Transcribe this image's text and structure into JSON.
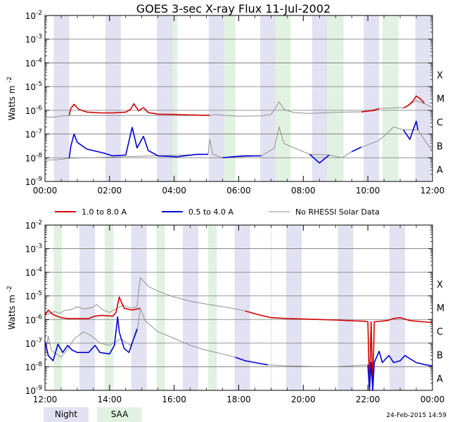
{
  "chart_data": {
    "type": "line",
    "title": "GOES 3-sec X-ray Flux   11-Jul-2002",
    "ylabel": "Watts m",
    "ylabel_exponent": "-2",
    "yscale": "log",
    "y_tick_exponents": [
      "-2",
      "-3",
      "-4",
      "-5",
      "-6",
      "-7",
      "-8",
      "-9"
    ],
    "y_tick_base": "10",
    "flare_classes": [
      "X",
      "M",
      "C",
      "B",
      "A"
    ],
    "legend": {
      "series": [
        {
          "name": "1.0 to 8.0 A",
          "color": "#d40000"
        },
        {
          "name": "0.5 to 4.0 A",
          "color": "#0000d4"
        },
        {
          "name": "No RHESSI Solar Data",
          "color": "#909090"
        }
      ],
      "bands": [
        {
          "name": "Night",
          "color": "#e2e2f2"
        },
        {
          "name": "SAA",
          "color": "#e2f2e2"
        }
      ]
    },
    "footer": "24-Feb-2015 14:59",
    "panels": [
      {
        "x_ticks": [
          "00:00",
          "02:00",
          "04:00",
          "06:00",
          "08:00",
          "10:00",
          "12:00"
        ],
        "xlim_hours": [
          0,
          12
        ],
        "ylim_log": [
          -9,
          -2
        ],
        "night": [
          [
            0.27,
            0.75
          ],
          [
            1.87,
            2.35
          ],
          [
            3.47,
            3.95
          ],
          [
            5.07,
            5.55
          ],
          [
            6.67,
            7.15
          ],
          [
            8.27,
            8.75
          ],
          [
            9.87,
            10.35
          ],
          [
            11.47,
            11.95
          ]
        ],
        "saa": [
          [
            3.95,
            4.1
          ],
          [
            5.55,
            5.9
          ],
          [
            7.15,
            7.6
          ],
          [
            8.75,
            9.25
          ],
          [
            10.45,
            10.95
          ]
        ],
        "long_gray": [
          [
            0,
            5.2e-07
          ],
          [
            0.3,
            5.2e-07
          ],
          [
            0.42,
            5.5e-07
          ],
          [
            0.55,
            5.9e-07
          ],
          [
            0.75,
            6e-07
          ],
          [
            5.1,
            6.1e-07
          ],
          [
            5.3,
            6.6e-07
          ],
          [
            5.5,
            6.2e-07
          ],
          [
            6.0,
            5.6e-07
          ],
          [
            6.7,
            5.8e-07
          ],
          [
            7.0,
            6.6e-07
          ],
          [
            7.15,
            1.3e-06
          ],
          [
            7.25,
            2.3e-06
          ],
          [
            7.4,
            1.1e-06
          ],
          [
            7.7,
            8e-07
          ],
          [
            8.2,
            7.4e-07
          ],
          [
            8.75,
            8e-07
          ],
          [
            9.3,
            8.4e-07
          ],
          [
            9.8,
            8.6e-07
          ],
          [
            10.35,
            1.2e-06
          ],
          [
            10.7,
            1.25e-06
          ],
          [
            11.0,
            1.3e-06
          ],
          [
            11.1,
            1.25e-06
          ],
          [
            11.5,
            2.6e-06
          ],
          [
            11.8,
            1.8e-06
          ],
          [
            12,
            1.3e-06
          ]
        ],
        "long_red": [
          [
            0.75,
            6e-07
          ],
          [
            0.8,
            1.2e-06
          ],
          [
            0.9,
            1.8e-06
          ],
          [
            1.05,
            1.1e-06
          ],
          [
            1.3,
            8.4e-07
          ],
          [
            1.7,
            7.8e-07
          ],
          [
            2.1,
            7.8e-07
          ],
          [
            2.5,
            8.4e-07
          ],
          [
            2.65,
            1.1e-06
          ],
          [
            2.75,
            1.9e-06
          ],
          [
            2.9,
            9.5e-07
          ],
          [
            3.05,
            1.3e-06
          ],
          [
            3.2,
            8e-07
          ],
          [
            3.5,
            6.9e-07
          ],
          [
            4.0,
            6.7e-07
          ],
          [
            4.5,
            6.4e-07
          ],
          [
            5.1,
            6.1e-07
          ]
        ],
        "long_red_2": [
          [
            9.8,
            8.6e-07
          ],
          [
            10.2,
            1e-06
          ],
          [
            10.35,
            1.2e-06
          ]
        ],
        "long_red_3": [
          [
            11.1,
            1.25e-06
          ],
          [
            11.25,
            1.6e-06
          ],
          [
            11.4,
            2.5e-06
          ],
          [
            11.5,
            4e-06
          ],
          [
            11.62,
            3.1e-06
          ],
          [
            11.75,
            2e-06
          ]
        ],
        "short_gray": [
          [
            0,
            8e-09
          ],
          [
            0.4,
            8.3e-09
          ],
          [
            0.6,
            9e-09
          ],
          [
            0.75,
            9.5e-09
          ],
          [
            5.05,
            1.4e-08
          ],
          [
            5.1,
            6e-08
          ],
          [
            5.2,
            1.4e-08
          ],
          [
            5.5,
            1e-08
          ],
          [
            6.7,
            1.2e-08
          ],
          [
            7.1,
            2.5e-08
          ],
          [
            7.25,
            2e-07
          ],
          [
            7.4,
            4e-08
          ],
          [
            7.6,
            3e-08
          ],
          [
            8.2,
            1.4e-08
          ],
          [
            8.8,
            1.3e-08
          ],
          [
            9.2,
            1e-08
          ],
          [
            9.5,
            1.8e-08
          ],
          [
            9.8,
            2.8e-08
          ],
          [
            10.3,
            5e-08
          ],
          [
            10.5,
            8e-08
          ],
          [
            10.8,
            2e-07
          ],
          [
            11.1,
            1.5e-07
          ],
          [
            11.55,
            1.5e-07
          ],
          [
            11.8,
            4.5e-08
          ],
          [
            12,
            2e-08
          ]
        ],
        "short_blue": [
          [
            0.75,
            9.5e-09
          ],
          [
            0.8,
            3e-08
          ],
          [
            0.9,
            1e-07
          ],
          [
            1.0,
            4.5e-08
          ],
          [
            1.3,
            2.3e-08
          ],
          [
            1.8,
            1.6e-08
          ],
          [
            2.1,
            1.2e-08
          ],
          [
            2.5,
            1.3e-08
          ],
          [
            2.7,
            1.9e-07
          ],
          [
            2.85,
            2.6e-08
          ],
          [
            3.05,
            8e-08
          ],
          [
            3.2,
            2e-08
          ],
          [
            3.5,
            1.2e-08
          ],
          [
            4.1,
            1.1e-08
          ],
          [
            4.7,
            1.4e-08
          ],
          [
            5.05,
            1.4e-08
          ]
        ],
        "short_blue_2": [
          [
            5.5,
            1e-08
          ],
          [
            5.8,
            1.1e-08
          ],
          [
            6.2,
            1.2e-08
          ],
          [
            6.7,
            1.2e-08
          ]
        ],
        "short_blue_3": [
          [
            8.2,
            1.4e-08
          ],
          [
            8.5,
            6e-09
          ],
          [
            8.8,
            1.3e-08
          ]
        ],
        "short_blue_4": [
          [
            9.5,
            1.8e-08
          ],
          [
            9.8,
            2.8e-08
          ]
        ],
        "short_blue_5": [
          [
            11.1,
            1.5e-07
          ],
          [
            11.3,
            6e-08
          ],
          [
            11.5,
            3.5e-07
          ],
          [
            11.55,
            1.5e-07
          ]
        ]
      },
      {
        "x_ticks": [
          "12:00",
          "14:00",
          "16:00",
          "18:00",
          "20:00",
          "22:00",
          "00:00"
        ],
        "xlim_hours": [
          12,
          24
        ],
        "ylim_log": [
          -9,
          -2
        ],
        "night": [
          [
            13.07,
            13.55
          ],
          [
            14.67,
            15.15
          ],
          [
            16.27,
            16.75
          ],
          [
            17.87,
            18.35
          ],
          [
            19.47,
            19.95
          ],
          [
            21.07,
            21.55
          ],
          [
            22.67,
            23.15
          ]
        ],
        "saa": [
          [
            12.27,
            12.52
          ],
          [
            13.85,
            14.12
          ],
          [
            15.45,
            15.72
          ],
          [
            17.05,
            17.32
          ],
          [
            19.0,
            19.02
          ]
        ],
        "long_gray": [
          [
            12.0,
            1.5e-06
          ],
          [
            12.3,
            2.2e-06
          ],
          [
            12.45,
            1.8e-06
          ],
          [
            12.6,
            2.4e-06
          ],
          [
            12.8,
            2.6e-06
          ],
          [
            13.0,
            3.5e-06
          ],
          [
            13.2,
            2.8e-06
          ],
          [
            13.45,
            3.2e-06
          ],
          [
            13.6,
            4.3e-06
          ],
          [
            13.8,
            2.5e-06
          ],
          [
            14.0,
            2e-06
          ],
          [
            14.4,
            4e-06
          ],
          [
            14.7,
            3e-06
          ],
          [
            14.85,
            3.5e-06
          ],
          [
            14.95,
            6e-05
          ],
          [
            15.2,
            2.5e-05
          ],
          [
            15.6,
            1.4e-05
          ],
          [
            16.0,
            9e-06
          ],
          [
            16.5,
            6e-06
          ],
          [
            17.0,
            4.5e-06
          ],
          [
            17.5,
            3.5e-06
          ],
          [
            17.9,
            2.8e-06
          ],
          [
            18.2,
            2.3e-06
          ]
        ],
        "long_red": [
          [
            12.0,
            1.5e-06
          ],
          [
            12.1,
            2.5e-06
          ],
          [
            12.25,
            1.6e-06
          ],
          [
            12.5,
            1.2e-06
          ],
          [
            12.7,
            1.1e-06
          ],
          [
            13.0,
            1.1e-06
          ],
          [
            13.35,
            1.1e-06
          ],
          [
            13.55,
            1.4e-06
          ],
          [
            13.75,
            1.5e-06
          ],
          [
            14.1,
            1.4e-06
          ],
          [
            14.2,
            2e-06
          ],
          [
            14.3,
            9e-06
          ],
          [
            14.45,
            3e-06
          ],
          [
            14.7,
            2.5e-06
          ],
          [
            14.95,
            3e-06
          ]
        ],
        "long_red_2": [
          [
            18.2,
            2.3e-06
          ],
          [
            18.6,
            1.6e-06
          ],
          [
            19.0,
            1.2e-06
          ],
          [
            19.5,
            1.1e-06
          ],
          [
            20.0,
            1.05e-06
          ],
          [
            20.5,
            1e-06
          ],
          [
            21.0,
            9.5e-07
          ],
          [
            21.5,
            8.8e-07
          ],
          [
            21.9,
            8.5e-07
          ],
          [
            22.0,
            8e-07
          ],
          [
            22.05,
            1e-09
          ],
          [
            22.1,
            8e-07
          ],
          [
            22.15,
            1e-09
          ],
          [
            22.2,
            8e-07
          ],
          [
            22.6,
            9e-07
          ],
          [
            22.8,
            1.1e-06
          ],
          [
            23.0,
            1.2e-06
          ],
          [
            23.3,
            9e-07
          ],
          [
            23.7,
            8e-07
          ],
          [
            24.0,
            7.5e-07
          ]
        ],
        "short_gray": [
          [
            12.0,
            2.5e-08
          ],
          [
            12.1,
            2e-07
          ],
          [
            12.2,
            5e-08
          ],
          [
            12.5,
            2.5e-08
          ],
          [
            12.7,
            5.5e-08
          ],
          [
            12.9,
            1.5e-07
          ],
          [
            13.2,
            3e-07
          ],
          [
            13.45,
            2e-07
          ],
          [
            13.7,
            1e-07
          ],
          [
            14.0,
            8e-08
          ],
          [
            14.35,
            1.5e-07
          ],
          [
            14.65,
            8e-08
          ],
          [
            14.85,
            3e-07
          ],
          [
            14.95,
            3e-06
          ],
          [
            15.1,
            9e-07
          ],
          [
            15.5,
            3e-07
          ],
          [
            16.0,
            1.6e-07
          ],
          [
            16.5,
            8e-08
          ],
          [
            17.0,
            5e-08
          ],
          [
            17.5,
            3.5e-08
          ],
          [
            17.9,
            2.5e-08
          ]
        ],
        "short_blue": [
          [
            12.0,
            1.2e-07
          ],
          [
            12.1,
            3e-08
          ],
          [
            12.25,
            1.8e-08
          ],
          [
            12.4,
            9e-08
          ],
          [
            12.55,
            4e-08
          ],
          [
            12.7,
            8e-08
          ],
          [
            12.85,
            5e-08
          ],
          [
            13.0,
            4e-08
          ],
          [
            13.35,
            4e-08
          ],
          [
            13.55,
            8e-08
          ],
          [
            13.7,
            4e-08
          ],
          [
            14.0,
            3.5e-08
          ],
          [
            14.15,
            8e-08
          ],
          [
            14.25,
            1.3e-06
          ],
          [
            14.3,
            3e-07
          ],
          [
            14.45,
            6e-08
          ],
          [
            14.6,
            4e-08
          ],
          [
            14.85,
            4e-07
          ]
        ],
        "short_blue_2": [
          [
            17.9,
            2.5e-08
          ],
          [
            18.2,
            1.8e-08
          ],
          [
            18.5,
            1.5e-08
          ],
          [
            18.9,
            1.2e-08
          ]
        ],
        "short_gray_2": [
          [
            18.9,
            1.2e-08
          ],
          [
            19.5,
            1.1e-08
          ],
          [
            20.0,
            1.05e-08
          ],
          [
            20.5,
            1e-08
          ],
          [
            21.0,
            1e-08
          ],
          [
            21.5,
            1.1e-08
          ],
          [
            22.0,
            1.2e-08
          ]
        ],
        "short_blue_3": [
          [
            22.0,
            1.2e-08
          ],
          [
            22.05,
            1e-09
          ],
          [
            22.1,
            1.5e-08
          ],
          [
            22.15,
            1e-09
          ],
          [
            22.2,
            1.5e-08
          ],
          [
            22.35,
            4.5e-08
          ],
          [
            22.45,
            1.5e-08
          ],
          [
            22.65,
            3e-08
          ],
          [
            22.8,
            1.5e-08
          ],
          [
            23.0,
            1.8e-08
          ],
          [
            23.15,
            3e-08
          ],
          [
            23.3,
            2.2e-08
          ],
          [
            23.5,
            1.5e-08
          ],
          [
            23.8,
            1.2e-08
          ],
          [
            24.0,
            1.1e-08
          ]
        ]
      }
    ]
  }
}
